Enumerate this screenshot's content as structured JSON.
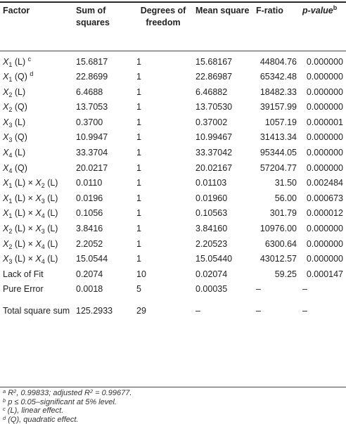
{
  "table": {
    "headers": {
      "factor": "Factor",
      "ss": "Sum of squares",
      "df": "Degrees of freedom",
      "ms": "Mean square",
      "f": "F-ratio",
      "p_base": "p-value",
      "p_sup": "b"
    },
    "rows": [
      {
        "factor": [
          {
            "t": "X"
          },
          {
            "sub": "1"
          },
          {
            "t": " (L) "
          },
          {
            "sup": "c"
          }
        ],
        "ss": "15.6817",
        "df": "1",
        "ms": "15.68167",
        "f": "44804.76",
        "p": "0.000000"
      },
      {
        "factor": [
          {
            "t": "X"
          },
          {
            "sub": "1"
          },
          {
            "t": " (Q) "
          },
          {
            "sup": "d"
          }
        ],
        "ss": "22.8699",
        "df": "1",
        "ms": "22.86987",
        "f": "65342.48",
        "p": "0.000000"
      },
      {
        "factor": [
          {
            "t": "X"
          },
          {
            "sub": "2"
          },
          {
            "t": " (L)"
          }
        ],
        "ss": "6.4688",
        "df": "1",
        "ms": "6.46882",
        "f": "18482.33",
        "p": "0.000000"
      },
      {
        "factor": [
          {
            "t": "X"
          },
          {
            "sub": "2"
          },
          {
            "t": " (Q)"
          }
        ],
        "ss": "13.7053",
        "df": "1",
        "ms": "13.70530",
        "f": "39157.99",
        "p": "0.000000"
      },
      {
        "factor": [
          {
            "t": "X"
          },
          {
            "sub": "3"
          },
          {
            "t": " (L)"
          }
        ],
        "ss": "0.3700",
        "df": "1",
        "ms": "0.37002",
        "f": "1057.19",
        "p": "0.000001"
      },
      {
        "factor": [
          {
            "t": "X"
          },
          {
            "sub": "3"
          },
          {
            "t": " (Q)"
          }
        ],
        "ss": "10.9947",
        "df": "1",
        "ms": "10.99467",
        "f": "31413.34",
        "p": "0.000000"
      },
      {
        "factor": [
          {
            "t": "X"
          },
          {
            "sub": "4"
          },
          {
            "t": " (L)"
          }
        ],
        "ss": "33.3704",
        "df": "1",
        "ms": "33.37042",
        "f": "95344.05",
        "p": "0.000000"
      },
      {
        "factor": [
          {
            "t": "X"
          },
          {
            "sub": "4"
          },
          {
            "t": " (Q)"
          }
        ],
        "ss": "20.0217",
        "df": "1",
        "ms": "20.02167",
        "f": "57204.77",
        "p": "0.000000"
      },
      {
        "factor": [
          {
            "t": "X"
          },
          {
            "sub": "1"
          },
          {
            "t": " (L) × "
          },
          {
            "t": "X"
          },
          {
            "sub": "2"
          },
          {
            "t": " (L)"
          }
        ],
        "ss": "0.0110",
        "df": "1",
        "ms": "0.01103",
        "f": "31.50",
        "p": "0.002484"
      },
      {
        "factor": [
          {
            "t": "X"
          },
          {
            "sub": "1"
          },
          {
            "t": " (L) × "
          },
          {
            "t": "X"
          },
          {
            "sub": "3"
          },
          {
            "t": " (L)"
          }
        ],
        "ss": "0.0196",
        "df": "1",
        "ms": "0.01960",
        "f": "56.00",
        "p": "0.000673"
      },
      {
        "factor": [
          {
            "t": "X"
          },
          {
            "sub": "1"
          },
          {
            "t": " (L) × "
          },
          {
            "t": "X"
          },
          {
            "sub": "4"
          },
          {
            "t": " (L)"
          }
        ],
        "ss": "0.1056",
        "df": "1",
        "ms": "0.10563",
        "f": "301.79",
        "p": "0.000012"
      },
      {
        "factor": [
          {
            "t": "X"
          },
          {
            "sub": "2"
          },
          {
            "t": " (L) × "
          },
          {
            "t": "X"
          },
          {
            "sub": "3"
          },
          {
            "t": " (L)"
          }
        ],
        "ss": "3.8416",
        "df": "1",
        "ms": "3.84160",
        "f": "10976.00",
        "p": "0.000000"
      },
      {
        "factor": [
          {
            "t": "X"
          },
          {
            "sub": "2"
          },
          {
            "t": " (L) × "
          },
          {
            "t": "X"
          },
          {
            "sub": "4"
          },
          {
            "t": " (L)"
          }
        ],
        "ss": "2.2052",
        "df": "1",
        "ms": "2.20523",
        "f": "6300.64",
        "p": "0.000000"
      },
      {
        "factor": [
          {
            "t": "X"
          },
          {
            "sub": "3"
          },
          {
            "t": " (L) × "
          },
          {
            "t": "X"
          },
          {
            "sub": "4"
          },
          {
            "t": " (L)"
          }
        ],
        "ss": "15.0544",
        "df": "1",
        "ms": "15.05440",
        "f": "43012.57",
        "p": "0.000000"
      },
      {
        "factor": [
          {
            "t": "Lack of Fit"
          }
        ],
        "ss": "0.2074",
        "df": "10",
        "ms": "0.02074",
        "f": "59.25",
        "p": "0.000147"
      },
      {
        "factor": [
          {
            "t": "Pure Error"
          }
        ],
        "ss": "0.0018",
        "df": "5",
        "ms": "0.00035",
        "f": "–",
        "p": "–"
      },
      {
        "factor": [
          {
            "t": "Total square sum"
          }
        ],
        "ss": "125.2933",
        "df": "29",
        "ms": "–",
        "f": "–",
        "p": "–"
      }
    ]
  },
  "footnotes": [
    {
      "mark": "a",
      "parts": [
        {
          "t": " R"
        },
        {
          "sup": "2"
        },
        {
          "t": ", 0.99833; adjusted R"
        },
        {
          "sup": "2"
        },
        {
          "t": " = 0.99677."
        }
      ]
    },
    {
      "mark": "b",
      "parts": [
        {
          "t": " p ≤ 0.05–significant at 5% level."
        }
      ]
    },
    {
      "mark": "c",
      "parts": [
        {
          "t": " (L), linear effect."
        }
      ]
    },
    {
      "mark": "d",
      "parts": [
        {
          "t": " (Q), quadratic effect."
        }
      ]
    }
  ]
}
